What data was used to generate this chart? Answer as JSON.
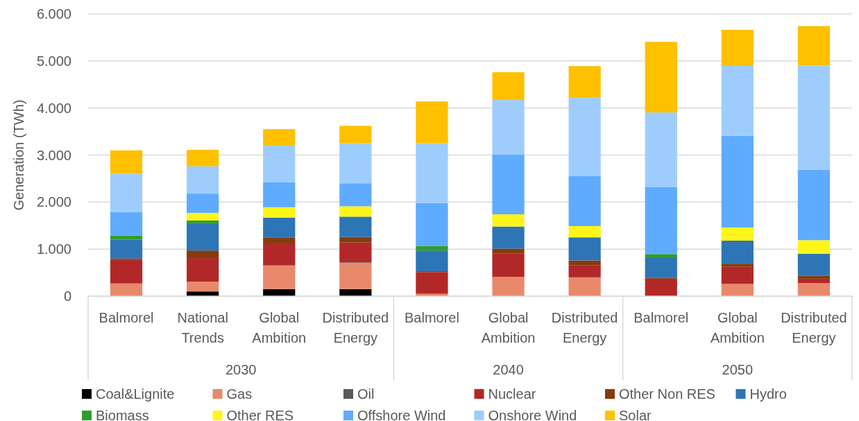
{
  "chart_data": {
    "type": "bar",
    "stacked": true,
    "ylabel": "Generation (TWh)",
    "categories": [
      "Balmorel",
      "National Trends",
      "Global Ambition",
      "Distributed Energy",
      "Balmorel",
      "Global Ambition",
      "Distributed Energy",
      "Balmorel",
      "Global Ambition",
      "Distributed Energy"
    ],
    "annotations": [
      "2030",
      "2040",
      "2050"
    ],
    "ylim": [
      0,
      6000
    ],
    "yticks": [
      {
        "value": 0,
        "label": "0"
      },
      {
        "value": 1000,
        "label": "1.000"
      },
      {
        "value": 2000,
        "label": "2.000"
      },
      {
        "value": 3000,
        "label": "3.000"
      },
      {
        "value": 4000,
        "label": "4.000"
      },
      {
        "value": 5000,
        "label": "5.000"
      },
      {
        "value": 6000,
        "label": "6.000"
      }
    ],
    "grid": "y",
    "legend": "bottom",
    "series": [
      {
        "name": "Coal&Lignite",
        "color": "#000000",
        "values": [
          0,
          100,
          150,
          150,
          0,
          0,
          0,
          0,
          0,
          0
        ]
      },
      {
        "name": "Gas",
        "color": "#e8896b",
        "values": [
          270,
          210,
          500,
          560,
          50,
          410,
          400,
          0,
          260,
          280
        ]
      },
      {
        "name": "Oil",
        "color": "#595959",
        "values": [
          0,
          0,
          10,
          10,
          0,
          0,
          0,
          0,
          0,
          0
        ]
      },
      {
        "name": "Nuclear",
        "color": "#b22828",
        "values": [
          500,
          500,
          460,
          420,
          460,
          500,
          260,
          370,
          370,
          90
        ]
      },
      {
        "name": "Other Non RES",
        "color": "#843c0c",
        "values": [
          30,
          160,
          120,
          120,
          20,
          100,
          100,
          15,
          60,
          60
        ]
      },
      {
        "name": "Hydro",
        "color": "#2e75b6",
        "values": [
          400,
          580,
          430,
          430,
          440,
          470,
          490,
          440,
          490,
          470
        ]
      },
      {
        "name": "Biomass",
        "color": "#2e9e2e",
        "values": [
          90,
          60,
          0,
          0,
          100,
          0,
          0,
          70,
          0,
          0
        ]
      },
      {
        "name": "Other RES",
        "color": "#fff51a",
        "values": [
          0,
          160,
          220,
          220,
          0,
          260,
          240,
          0,
          280,
          290
        ]
      },
      {
        "name": "Offshore Wind",
        "color": "#5fabff",
        "values": [
          500,
          410,
          530,
          490,
          910,
          1270,
          1060,
          1420,
          1950,
          1500
        ]
      },
      {
        "name": "Onshore Wind",
        "color": "#9ecdfd",
        "values": [
          810,
          580,
          780,
          850,
          1270,
          1160,
          1680,
          1590,
          1500,
          2210
        ]
      },
      {
        "name": "Solar",
        "color": "#ffc000",
        "values": [
          500,
          350,
          350,
          370,
          890,
          590,
          660,
          1500,
          750,
          840
        ]
      }
    ]
  }
}
